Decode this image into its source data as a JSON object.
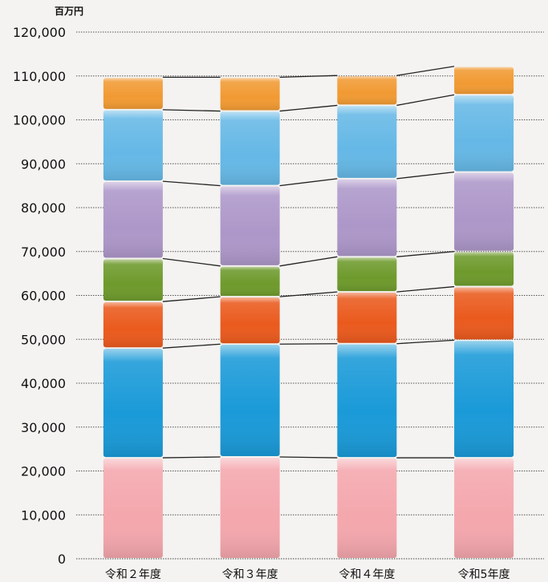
{
  "chart_data": {
    "type": "bar",
    "stacked": true,
    "unit_label": "百万円",
    "categories": [
      "令和２年度",
      "令和３年度",
      "令和４年度",
      "令和5年度"
    ],
    "ylim": [
      0,
      120000
    ],
    "yticks": [
      "0",
      "10,000",
      "20,000",
      "30,000",
      "40,000",
      "50,000",
      "60,000",
      "70,000",
      "80,000",
      "90,000",
      "100,000",
      "110,000",
      "120,000"
    ],
    "grid": true,
    "connector_lines": true,
    "series": [
      {
        "color": "#f4a7ad",
        "values": [
          23000,
          23200,
          23000,
          23000
        ]
      },
      {
        "color": "#1a9ad8",
        "values": [
          25000,
          25700,
          26000,
          26800
        ]
      },
      {
        "color": "#ea5a1d",
        "values": [
          10600,
          10800,
          11800,
          12200
        ]
      },
      {
        "color": "#6e9a2c",
        "values": [
          9800,
          7000,
          8000,
          8000
        ]
      },
      {
        "color": "#ad97c9",
        "values": [
          17600,
          18300,
          17800,
          18100
        ]
      },
      {
        "color": "#65b8e6",
        "values": [
          16300,
          17000,
          16700,
          17600
        ]
      },
      {
        "color": "#f19a33",
        "values": [
          7400,
          7700,
          6800,
          6500
        ]
      }
    ]
  }
}
